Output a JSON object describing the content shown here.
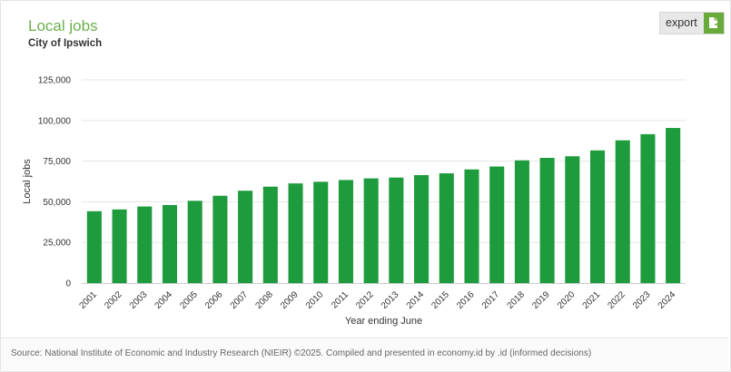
{
  "header": {
    "title": "Local jobs",
    "subtitle": "City of Ipswich",
    "export_label": "export"
  },
  "footer": {
    "source": "Source: National Institute of Economic and Industry Research (NIEIR) ©2025. Compiled and presented in economy.id by .id (informed decisions)"
  },
  "colors": {
    "bar": "#1e9b3c",
    "title": "#6ab04c",
    "export_icon_bg": "#6aaa3a"
  },
  "icons": {
    "export": "export-document-icon"
  },
  "chart_data": {
    "type": "bar",
    "categories": [
      "2001",
      "2002",
      "2003",
      "2004",
      "2005",
      "2006",
      "2007",
      "2008",
      "2009",
      "2010",
      "2011",
      "2012",
      "2013",
      "2014",
      "2015",
      "2016",
      "2017",
      "2018",
      "2019",
      "2020",
      "2021",
      "2022",
      "2023",
      "2024"
    ],
    "values": [
      44200,
      45300,
      47100,
      48000,
      50600,
      53700,
      56800,
      59300,
      61300,
      62300,
      63400,
      64400,
      64900,
      66400,
      67500,
      69900,
      71700,
      75500,
      77000,
      78000,
      81600,
      87800,
      91600,
      95400
    ],
    "xlabel": "Year ending June",
    "ylabel": "Local jobs",
    "ylim": [
      0,
      125000
    ],
    "yticks": [
      0,
      25000,
      50000,
      75000,
      100000,
      125000
    ],
    "ytick_labels": [
      "0",
      "25,000",
      "50,000",
      "75,000",
      "100,000",
      "125,000"
    ],
    "grid": true,
    "legend": "none"
  }
}
